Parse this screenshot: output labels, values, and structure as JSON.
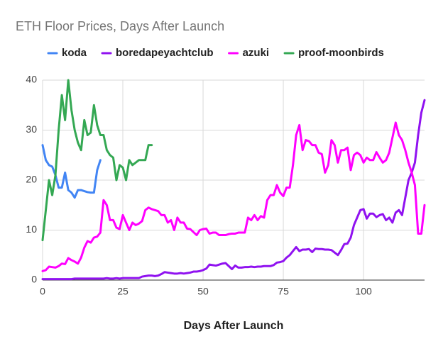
{
  "chart_data": {
    "type": "line",
    "title": "ETH Floor Prices, Days After Launch",
    "xlabel": "Days After Launch",
    "xlim": [
      0,
      119
    ],
    "xticks": [
      0,
      25,
      50,
      75,
      100
    ],
    "ylim": [
      0,
      40
    ],
    "yticks": [
      0,
      10,
      20,
      30,
      40
    ],
    "grid": true,
    "legend": "top",
    "series": [
      {
        "name": "koda",
        "color": "#4285f4",
        "x": [
          0,
          1,
          2,
          3,
          4,
          5,
          6,
          7,
          8,
          9,
          10,
          11,
          12,
          13,
          14,
          15,
          16,
          17,
          18
        ],
        "values": [
          27,
          24,
          23,
          22.7,
          21,
          18.5,
          18.5,
          21.5,
          18,
          17.5,
          16.5,
          18,
          18,
          17.8,
          17.6,
          17.5,
          17.5,
          22,
          24
        ]
      },
      {
        "name": "boredapeyachtclub",
        "color": "#9012f0",
        "x": [
          0,
          1,
          2,
          3,
          4,
          5,
          6,
          7,
          8,
          9,
          10,
          11,
          12,
          13,
          14,
          15,
          16,
          17,
          18,
          19,
          20,
          21,
          22,
          23,
          24,
          25,
          26,
          27,
          28,
          29,
          30,
          31,
          32,
          33,
          34,
          35,
          36,
          37,
          38,
          39,
          40,
          41,
          42,
          43,
          44,
          45,
          46,
          47,
          48,
          49,
          50,
          51,
          52,
          53,
          54,
          55,
          56,
          57,
          58,
          59,
          60,
          61,
          62,
          63,
          64,
          65,
          66,
          67,
          68,
          69,
          70,
          71,
          72,
          73,
          74,
          75,
          76,
          77,
          78,
          79,
          80,
          81,
          82,
          83,
          84,
          85,
          86,
          87,
          88,
          89,
          90,
          91,
          92,
          93,
          94,
          95,
          96,
          97,
          98,
          99,
          100,
          101,
          102,
          103,
          104,
          105,
          106,
          107,
          108,
          109,
          110,
          111,
          112,
          113,
          114,
          115,
          116,
          117,
          118,
          119
        ],
        "values": [
          0.2,
          0.2,
          0.2,
          0.2,
          0.2,
          0.2,
          0.2,
          0.2,
          0.2,
          0.2,
          0.3,
          0.3,
          0.3,
          0.3,
          0.3,
          0.3,
          0.3,
          0.3,
          0.3,
          0.3,
          0.4,
          0.3,
          0.3,
          0.4,
          0.3,
          0.4,
          0.4,
          0.4,
          0.4,
          0.4,
          0.4,
          0.7,
          0.8,
          0.9,
          0.9,
          0.8,
          0.9,
          1.2,
          1.6,
          1.5,
          1.4,
          1.3,
          1.3,
          1.4,
          1.3,
          1.4,
          1.5,
          1.7,
          1.7,
          1.8,
          2,
          2.3,
          3.1,
          3,
          2.9,
          3.1,
          3.3,
          3.4,
          2.8,
          2.2,
          2.9,
          2.5,
          2.5,
          2.6,
          2.6,
          2.7,
          2.6,
          2.7,
          2.7,
          2.8,
          2.8,
          2.8,
          3,
          3.5,
          3.6,
          3.8,
          4.5,
          5,
          5.8,
          6.6,
          5.8,
          6.1,
          6.1,
          6.2,
          5.6,
          6.3,
          6.2,
          6.2,
          6.1,
          6.1,
          6,
          5.5,
          5,
          6,
          7.2,
          7.3,
          8.5,
          11,
          12.5,
          14,
          14.2,
          12.3,
          13.3,
          13.3,
          12.6,
          13,
          13.2,
          12,
          12.5,
          11.5,
          13.5,
          14,
          13,
          16.5,
          20,
          21.5,
          23.5,
          29,
          33.5,
          36
        ]
      },
      {
        "name": "azuki",
        "color": "#ff00ff",
        "x": [
          0,
          1,
          2,
          3,
          4,
          5,
          6,
          7,
          8,
          9,
          10,
          11,
          12,
          13,
          14,
          15,
          16,
          17,
          18,
          19,
          20,
          21,
          22,
          23,
          24,
          25,
          26,
          27,
          28,
          29,
          30,
          31,
          32,
          33,
          34,
          35,
          36,
          37,
          38,
          39,
          40,
          41,
          42,
          43,
          44,
          45,
          46,
          47,
          48,
          49,
          50,
          51,
          52,
          53,
          54,
          55,
          56,
          57,
          58,
          59,
          60,
          61,
          62,
          63,
          64,
          65,
          66,
          67,
          68,
          69,
          70,
          71,
          72,
          73,
          74,
          75,
          76,
          77,
          78,
          79,
          80,
          81,
          82,
          83,
          84,
          85,
          86,
          87,
          88,
          89,
          90,
          91,
          92,
          93,
          94,
          95,
          96,
          97,
          98,
          99,
          100,
          101,
          102,
          103,
          104,
          105,
          106,
          107,
          108,
          109,
          110,
          111,
          112,
          113,
          114,
          115,
          116,
          117,
          118,
          119
        ],
        "values": [
          1.8,
          2,
          2.7,
          2.6,
          2.5,
          2.8,
          3.3,
          3.2,
          4.4,
          4,
          3.7,
          3.3,
          4.5,
          6.5,
          7.8,
          7.5,
          8.5,
          8.7,
          9.5,
          16,
          15,
          12,
          12,
          10.5,
          10.2,
          13,
          11.5,
          10,
          11.5,
          11,
          11.3,
          11.8,
          14,
          14.5,
          14.2,
          14,
          13.8,
          13,
          13,
          11.5,
          12,
          10,
          12.5,
          11.5,
          11.5,
          10.3,
          10.2,
          9.6,
          9,
          10,
          10.2,
          10.3,
          9.3,
          9.5,
          9.5,
          9,
          9,
          9,
          9.2,
          9.3,
          9.3,
          9.5,
          9.5,
          9.5,
          12.5,
          12,
          13,
          12,
          12.8,
          12.5,
          16,
          17,
          17,
          19,
          17.5,
          16.8,
          18.5,
          18.5,
          23,
          29,
          31,
          26,
          28,
          27.8,
          27,
          27,
          25.5,
          25.2,
          21.5,
          23,
          28,
          27,
          23.5,
          26,
          26,
          26.5,
          22,
          25,
          25.5,
          25,
          23.5,
          24.5,
          24,
          24,
          25.6,
          24.5,
          23.5,
          24,
          25.5,
          28.5,
          31.5,
          29,
          28,
          26,
          23.5,
          21.5,
          19,
          9.3,
          9.3,
          15
        ]
      },
      {
        "name": "proof-moonbirds",
        "color": "#34a853",
        "x": [
          0,
          1,
          2,
          3,
          4,
          5,
          6,
          7,
          8,
          9,
          10,
          11,
          12,
          13,
          14,
          15,
          16,
          17,
          18,
          19,
          20,
          21,
          22,
          23,
          24,
          25,
          26,
          27,
          28,
          29,
          30,
          31,
          32,
          33,
          34
        ],
        "values": [
          8,
          14,
          20,
          17,
          21,
          30,
          37,
          32,
          40,
          34,
          30,
          27.5,
          26,
          32,
          29,
          29.5,
          35,
          31,
          29,
          29,
          26,
          25,
          24.5,
          20,
          23,
          22.5,
          20,
          24,
          23,
          23.5,
          24,
          24,
          24,
          27,
          27
        ]
      }
    ]
  }
}
